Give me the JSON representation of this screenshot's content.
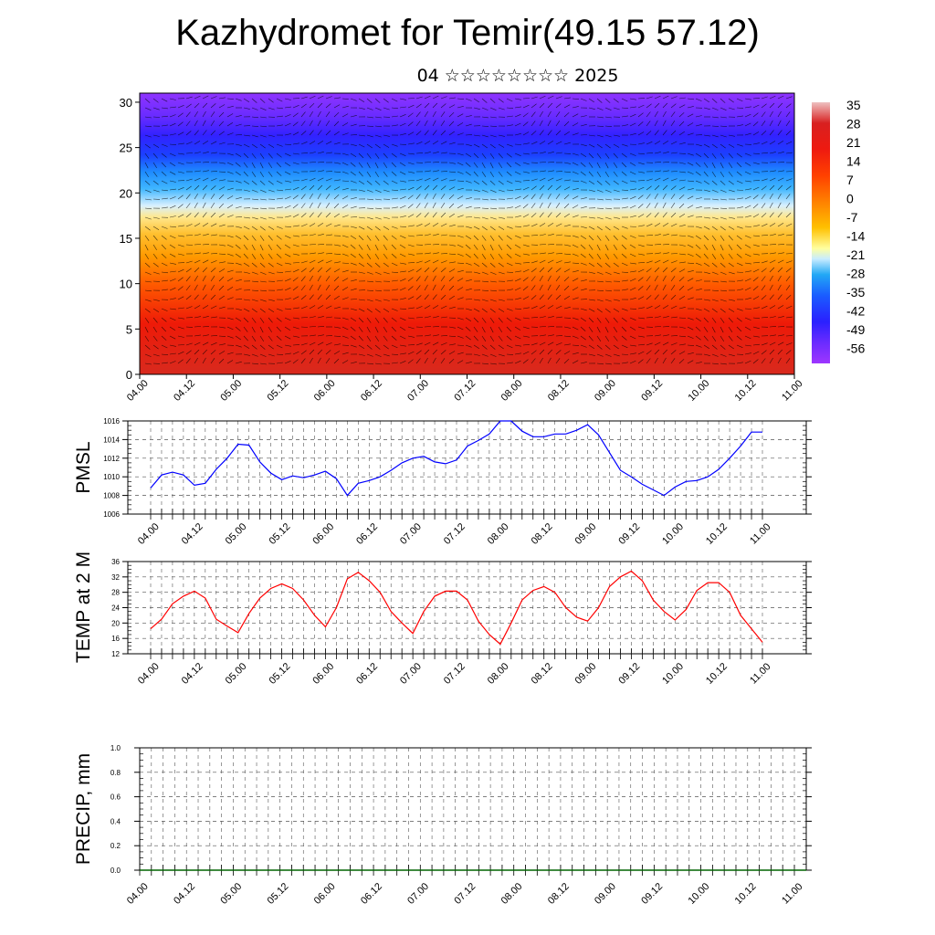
{
  "title": "Kazhydromet for Temir(49.15 57.12)",
  "subtitle": "04 ☆☆☆☆☆☆☆☆ 2025",
  "time_labels": [
    "04.00",
    "04.12",
    "05.00",
    "05.12",
    "06.00",
    "06.12",
    "07.00",
    "07.12",
    "08.00",
    "08.12",
    "09.00",
    "09.12",
    "10.00",
    "10.12",
    "11.00"
  ],
  "colors": {
    "pmsl_line": "#0000ff",
    "temp_line": "#ff0000",
    "precip_line": "#006400",
    "colorbar": [
      "#9e36ff",
      "#6d2bff",
      "#2a20ff",
      "#1a4cff",
      "#1e8bff",
      "#22c4f5",
      "#bfe8ff",
      "#ffffa0",
      "#ffe066",
      "#ffc000",
      "#ff9400",
      "#ff6a00",
      "#ff3a00",
      "#f21a00",
      "#e01010",
      "#e8a0a0"
    ]
  },
  "chart_data": [
    {
      "type": "heatmap",
      "name": "cross-section",
      "yticks": [
        0,
        5,
        10,
        15,
        20,
        25,
        30
      ],
      "ylim": [
        0,
        31
      ],
      "x": [
        "04.00",
        "04.12",
        "05.00",
        "05.12",
        "06.00",
        "06.12",
        "07.00",
        "07.12",
        "08.00",
        "08.12",
        "09.00",
        "09.12",
        "10.00",
        "10.12",
        "11.00"
      ],
      "colorbar_labels": [
        "35",
        "28",
        "21",
        "14",
        "7",
        "0",
        "-7",
        "-14",
        "-21",
        "-28",
        "-35",
        "-42",
        "-49",
        "-56"
      ],
      "overlay": "wind barbs"
    },
    {
      "type": "line",
      "ylabel": "PMSL",
      "ylim": [
        1006,
        1016
      ],
      "yticks": [
        1006,
        1008,
        1010,
        1012,
        1014,
        1016
      ],
      "x": [
        "04.00",
        "04.03",
        "04.06",
        "04.09",
        "04.12",
        "04.15",
        "04.18",
        "04.21",
        "05.00",
        "05.03",
        "05.06",
        "05.09",
        "05.12",
        "05.15",
        "05.18",
        "05.21",
        "06.00",
        "06.03",
        "06.06",
        "06.09",
        "06.12",
        "06.15",
        "06.18",
        "06.21",
        "07.00",
        "07.03",
        "07.06",
        "07.09",
        "07.12",
        "07.15",
        "07.18",
        "07.21",
        "08.00",
        "08.03",
        "08.06",
        "08.09",
        "08.12",
        "08.15",
        "08.18",
        "08.21",
        "09.00",
        "09.03",
        "09.06",
        "09.09",
        "09.12",
        "09.15",
        "09.18",
        "09.21",
        "10.00",
        "10.03",
        "10.06",
        "10.09",
        "10.12",
        "10.15",
        "10.18",
        "10.21",
        "11.00"
      ],
      "series": [
        {
          "values": [
            1008.8,
            1010.2,
            1010.5,
            1010.2,
            1009.1,
            1009.3,
            1010.8,
            1012.0,
            1013.5,
            1013.4,
            1011.6,
            1010.4,
            1009.7,
            1010.1,
            1009.9,
            1010.2,
            1010.6,
            1009.8,
            1008.0,
            1009.3,
            1009.6,
            1010.0,
            1010.7,
            1011.5,
            1012.0,
            1012.2,
            1011.6,
            1011.4,
            1011.8,
            1013.3,
            1013.9,
            1014.6,
            1016.0,
            1016.0,
            1014.9,
            1014.3,
            1014.3,
            1014.6,
            1014.6,
            1015.0,
            1015.6,
            1014.5,
            1012.6,
            1010.7,
            1010.0,
            1009.2,
            1008.6,
            1008.0,
            1008.9,
            1009.5,
            1009.6,
            1010.0,
            1010.8,
            1012.0,
            1013.3,
            1014.8,
            1014.8
          ]
        }
      ]
    },
    {
      "type": "line",
      "ylabel": "TEMP at 2 M",
      "ylim": [
        12,
        36
      ],
      "yticks": [
        12,
        16,
        20,
        24,
        28,
        32,
        36
      ],
      "x": [
        "04.00",
        "04.03",
        "04.06",
        "04.09",
        "04.12",
        "04.15",
        "04.18",
        "04.21",
        "05.00",
        "05.03",
        "05.06",
        "05.09",
        "05.12",
        "05.15",
        "05.18",
        "05.21",
        "06.00",
        "06.03",
        "06.06",
        "06.09",
        "06.12",
        "06.15",
        "06.18",
        "06.21",
        "07.00",
        "07.03",
        "07.06",
        "07.09",
        "07.12",
        "07.15",
        "07.18",
        "07.21",
        "08.00",
        "08.03",
        "08.06",
        "08.09",
        "08.12",
        "08.15",
        "08.18",
        "08.21",
        "09.00",
        "09.03",
        "09.06",
        "09.09",
        "09.12",
        "09.15",
        "09.18",
        "09.21",
        "10.00",
        "10.03",
        "10.06",
        "10.09",
        "10.12",
        "10.15",
        "10.18",
        "10.21",
        "11.00"
      ],
      "series": [
        {
          "values": [
            18.5,
            21.0,
            25.0,
            27.0,
            28.3,
            26.5,
            21.0,
            19.2,
            17.5,
            22.5,
            26.5,
            29.0,
            30.2,
            29.0,
            26.0,
            22.0,
            19.0,
            24.0,
            31.5,
            33.2,
            31.0,
            28.0,
            23.0,
            20.0,
            17.3,
            23.0,
            27.0,
            28.3,
            28.3,
            26.0,
            20.5,
            17.0,
            14.5,
            20.0,
            26.0,
            28.5,
            29.5,
            28.0,
            24.0,
            21.5,
            20.5,
            24.0,
            29.5,
            32.0,
            33.5,
            31.0,
            26.0,
            23.0,
            20.8,
            23.5,
            28.5,
            30.5,
            30.5,
            28.0,
            22.0,
            18.5,
            15.0
          ]
        }
      ]
    },
    {
      "type": "line",
      "ylabel": "PRECIP, mm",
      "ylim": [
        0,
        1
      ],
      "yticks": [
        "0.0",
        "0.2",
        "0.4",
        "0.6",
        "0.8",
        "1.0"
      ],
      "x": [
        "04.00",
        "04.12",
        "05.00",
        "05.12",
        "06.00",
        "06.12",
        "07.00",
        "07.12",
        "08.00",
        "08.12",
        "09.00",
        "09.12",
        "10.00",
        "10.12",
        "11.00"
      ],
      "series": [
        {
          "values": [
            0,
            0,
            0,
            0,
            0,
            0,
            0,
            0,
            0,
            0,
            0,
            0,
            0,
            0,
            0
          ]
        }
      ]
    }
  ]
}
